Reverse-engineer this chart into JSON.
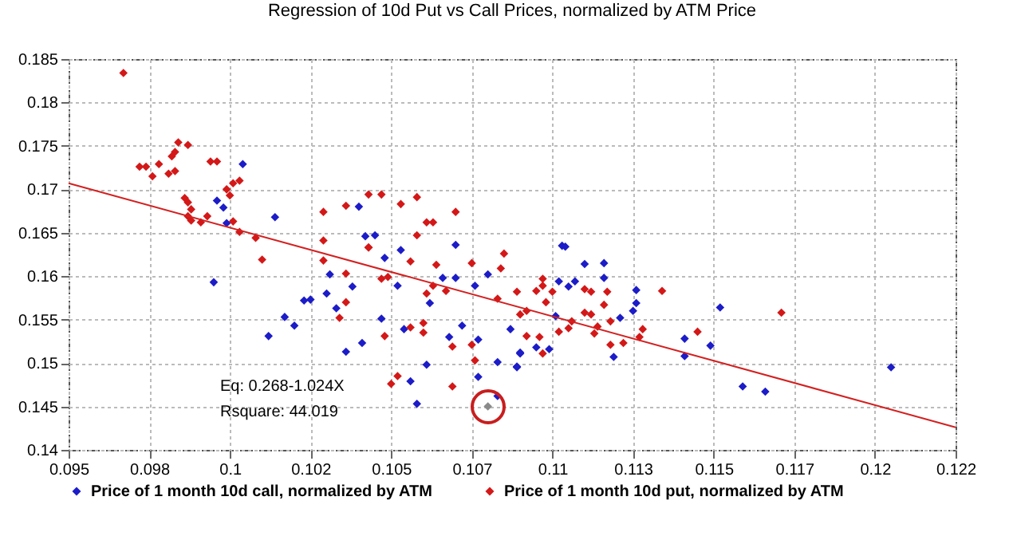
{
  "chart_data": {
    "type": "scatter",
    "title": "Regression of 10d Put vs Call Prices, normalized by ATM Price",
    "xlim": [
      0.095,
      0.1225
    ],
    "xticks": [
      0.095,
      {
        "value": 0.0975,
        "label": "0.098"
      },
      0.1,
      {
        "value": 0.1025,
        "label": "0.102"
      },
      0.105,
      {
        "value": 0.1075,
        "label": "0.107"
      },
      0.11,
      {
        "value": 0.1125,
        "label": "0.113"
      },
      0.115,
      {
        "value": 0.1175,
        "label": "0.117"
      },
      0.12,
      {
        "value": 0.1225,
        "label": "0.122"
      }
    ],
    "ylim": [
      0.14,
      0.185
    ],
    "yticks": [
      0.14,
      0.145,
      0.15,
      0.155,
      0.16,
      0.165,
      0.17,
      0.175,
      0.18,
      0.185
    ],
    "grid": true,
    "legend": "bottom",
    "marker": "diamond",
    "annotations": [
      "Eq: 0.268-1.024X",
      "Rsquare:    44.019"
    ],
    "series": [
      {
        "name": "Price of 1 month 10d call, normalized by ATM",
        "color": "#1c1cc8",
        "x": [
          0.1004,
          0.0996,
          0.0998,
          0.0999,
          0.1014,
          0.104,
          0.1042,
          0.1045,
          0.107,
          0.1053,
          0.1103,
          0.0995,
          0.1012,
          0.1017,
          0.102,
          0.1023,
          0.1025,
          0.103,
          0.1031,
          0.1033,
          0.1036,
          0.1041,
          0.1048,
          0.1047,
          0.1052,
          0.1056,
          0.1058,
          0.1062,
          0.1061,
          0.1066,
          0.107,
          0.1068,
          0.1072,
          0.1076,
          0.108,
          0.1077,
          0.1083,
          0.1083,
          0.1089,
          0.1087,
          0.109,
          0.1077,
          0.1054,
          0.1038,
          0.1104,
          0.111,
          0.1116,
          0.1116,
          0.1102,
          0.1105,
          0.1107,
          0.1126,
          0.1126,
          0.109,
          0.1089,
          0.1095,
          0.1099,
          0.1101,
          0.1119,
          0.1121,
          0.1125,
          0.1141,
          0.1141,
          0.1149,
          0.1152,
          0.1159,
          0.1166,
          0.1205
        ],
        "values": [
          0.1729,
          0.1687,
          0.1679,
          0.1661,
          0.1668,
          0.168,
          0.1646,
          0.1647,
          0.1636,
          0.163,
          0.1635,
          0.1593,
          0.1531,
          0.1553,
          0.1543,
          0.1572,
          0.1573,
          0.158,
          0.1602,
          0.1563,
          0.1513,
          0.1523,
          0.1621,
          0.1551,
          0.1589,
          0.1479,
          0.1453,
          0.1569,
          0.1498,
          0.1598,
          0.1598,
          0.153,
          0.1543,
          0.1589,
          0.1602,
          0.1484,
          0.1462,
          0.1501,
          0.1496,
          0.1539,
          0.1512,
          0.1527,
          0.1539,
          0.1588,
          0.1634,
          0.1614,
          0.1615,
          0.1598,
          0.1594,
          0.1588,
          0.1594,
          0.1584,
          0.1569,
          0.1511,
          0.1495,
          0.1518,
          0.1516,
          0.1554,
          0.1507,
          0.1552,
          0.156,
          0.1528,
          0.1508,
          0.152,
          0.1564,
          0.1473,
          0.1467,
          0.1495
        ]
      },
      {
        "name": "Price of 1 month 10d put, normalized by ATM",
        "color": "#d41818",
        "x": [
          0.0967,
          0.0972,
          0.0974,
          0.0976,
          0.0978,
          0.0981,
          0.0982,
          0.0983,
          0.0983,
          0.0984,
          0.0987,
          0.0986,
          0.0987,
          0.0988,
          0.0987,
          0.0988,
          0.0991,
          0.0993,
          0.0994,
          0.0996,
          0.0999,
          0.1,
          0.1001,
          0.1003,
          0.1001,
          0.1003,
          0.1008,
          0.1029,
          0.1029,
          0.1036,
          0.1043,
          0.1047,
          0.1053,
          0.1058,
          0.1061,
          0.1063,
          0.1058,
          0.1043,
          0.107,
          0.101,
          0.1029,
          0.1036,
          0.1036,
          0.1034,
          0.1043,
          0.1047,
          0.1049,
          0.1048,
          0.105,
          0.1052,
          0.1056,
          0.1056,
          0.106,
          0.106,
          0.1061,
          0.1063,
          0.1064,
          0.1067,
          0.1069,
          0.1069,
          0.1075,
          0.1075,
          0.1076,
          0.1083,
          0.1084,
          0.1085,
          0.109,
          0.1092,
          0.1095,
          0.1134,
          0.1171,
          0.1145,
          0.1127,
          0.1128,
          0.1097,
          0.1097,
          0.11,
          0.1098,
          0.1089,
          0.1092,
          0.1096,
          0.1097,
          0.1102,
          0.1106,
          0.1105,
          0.111,
          0.1112,
          0.111,
          0.1112,
          0.1113,
          0.1114,
          0.1116,
          0.1117,
          0.1118,
          0.1118,
          0.1122
        ],
        "values": [
          0.1834,
          0.1726,
          0.1726,
          0.1715,
          0.1729,
          0.1718,
          0.1738,
          0.1743,
          0.1721,
          0.1754,
          0.1751,
          0.169,
          0.1685,
          0.1677,
          0.1669,
          0.1664,
          0.1662,
          0.1669,
          0.1732,
          0.1732,
          0.17,
          0.1693,
          0.1707,
          0.171,
          0.1663,
          0.1651,
          0.1644,
          0.1674,
          0.1641,
          0.1681,
          0.1694,
          0.1694,
          0.1683,
          0.1691,
          0.1662,
          0.1662,
          0.1647,
          0.1633,
          0.1674,
          0.1619,
          0.1618,
          0.1603,
          0.157,
          0.1552,
          0.1633,
          0.1597,
          0.1599,
          0.1531,
          0.1476,
          0.1485,
          0.1617,
          0.1541,
          0.1535,
          0.1546,
          0.158,
          0.1589,
          0.1613,
          0.1583,
          0.1473,
          0.1519,
          0.1521,
          0.1615,
          0.1503,
          0.1574,
          0.1609,
          0.1626,
          0.1556,
          0.1531,
          0.1583,
          0.1583,
          0.1558,
          0.1536,
          0.153,
          0.1539,
          0.1597,
          0.1589,
          0.1582,
          0.157,
          0.1582,
          0.156,
          0.153,
          0.1511,
          0.1536,
          0.1548,
          0.154,
          0.1585,
          0.1582,
          0.1558,
          0.1556,
          0.1534,
          0.1542,
          0.1567,
          0.1582,
          0.1548,
          0.1521,
          0.1523
        ]
      },
      {
        "type": "scatter",
        "color": "#8a8a8a",
        "x": [
          0.108
        ],
        "values": [
          0.145
        ]
      },
      {
        "type": "line",
        "marker": "none",
        "color": "#d42020",
        "x": [
          0.095,
          0.1225
        ],
        "values": [
          0.1707,
          0.1426
        ]
      }
    ]
  }
}
